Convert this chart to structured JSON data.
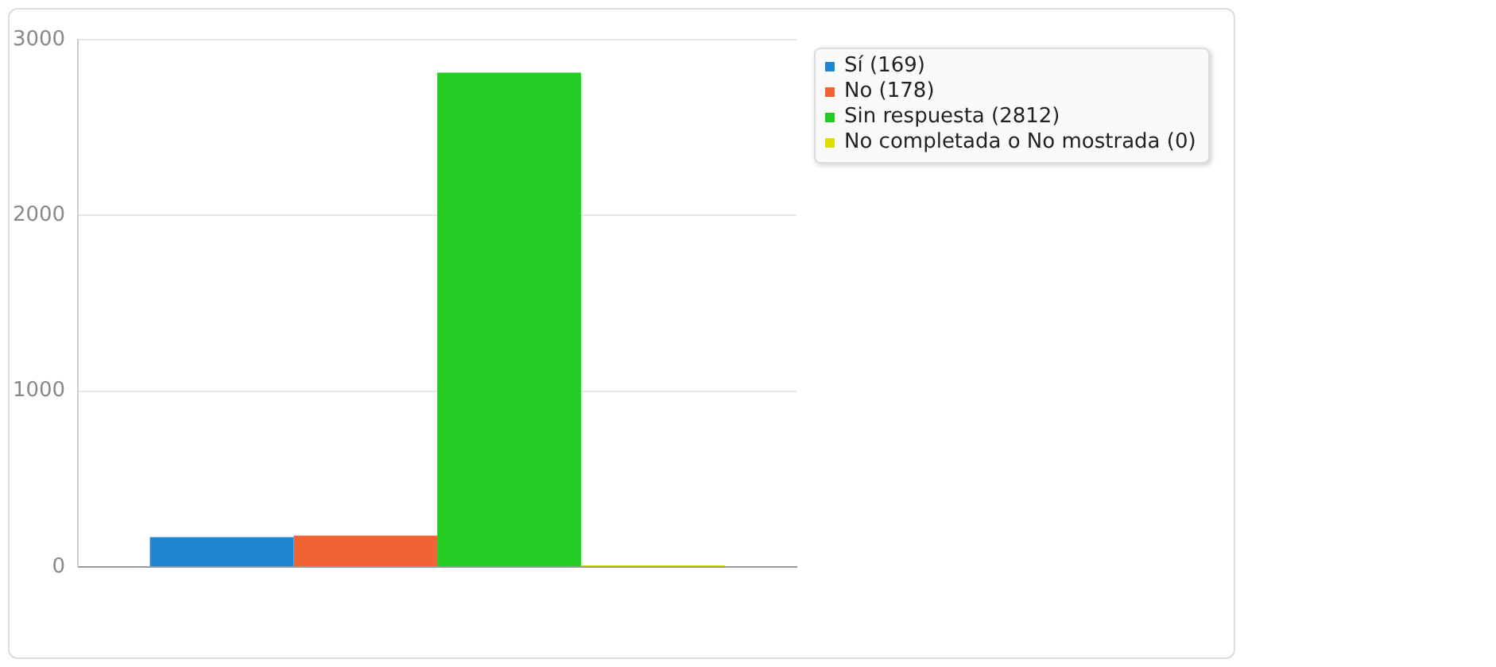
{
  "chart_data": {
    "type": "bar",
    "categories": [
      null
    ],
    "series": [
      {
        "name": "Sí (169)",
        "color": "#1f86d1",
        "values": [
          169
        ]
      },
      {
        "name": "No (178)",
        "color": "#ef6334",
        "values": [
          178
        ]
      },
      {
        "name": "Sin respuesta (2812)",
        "color": "#22cc22",
        "values": [
          2812
        ]
      },
      {
        "name": "No completada o No mostrada (0)",
        "color": "#dddd00",
        "values": [
          0
        ]
      }
    ],
    "ylim": [
      0,
      3000
    ],
    "yticks": [
      0,
      1000,
      2000,
      3000
    ],
    "grid": "y",
    "legend": "right",
    "tick_labels": "y"
  }
}
